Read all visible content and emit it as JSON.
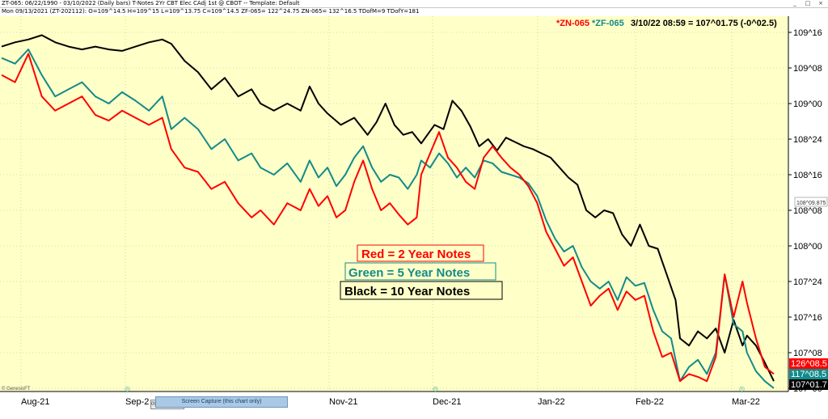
{
  "window": {
    "title": "ZT-065:  06/22/1990 - 03/10/2022  (Daily bars)   T-Notes 2Yr CBT Elec CAdj 1st @ CBOT   --  Template: Default",
    "buttons": [
      "_",
      "□",
      "×"
    ]
  },
  "infobar": {
    "text": "Mon  09/13/2021 (ZT-202112):  O=109^14.5   H=109^15   L=109^13.75   C=109^14.5   ZF-065= 122^24.75   ZN-065= 132^16.5   TDofM=9   TDofY=181"
  },
  "header": {
    "zn_label": "*ZN-065",
    "zf_label": "*ZF-065",
    "quote": "3/10/22 08:59 = 107^01.75 (-0^02.5)"
  },
  "watermark": "© GenesisFT",
  "cursor_price": "108^09.875",
  "last_prices": {
    "red": "126^08.5",
    "green": "117^08.5",
    "black": "107^01.7"
  },
  "taskbar": {
    "thumb_small": "09/13/2021",
    "capture_label": "Screen Capture (this chart only)"
  },
  "legend": {
    "red": "Red =  2 Year Notes",
    "green": "Green = 5 Year Notes",
    "black": "Black = 10 Year Notes"
  },
  "colors": {
    "background": "#ffffc8",
    "red": "#ff0000",
    "green": "#138a8a",
    "black": "#000000",
    "axis": "#000000",
    "grid": "#b4b4b4"
  },
  "chart_data": {
    "type": "line",
    "title": "",
    "xlabel": "",
    "ylabel": "",
    "x_tick_labels": [
      "Aug-21",
      "Sep-2",
      "Nov-21",
      "Dec-21",
      "Jan-22",
      "Feb-22",
      "Mar-22"
    ],
    "y_tick_labels": [
      "109^16",
      "109^08",
      "109^00",
      "108^24",
      "108^16",
      "108^08",
      "108^00",
      "107^24",
      "107^16",
      "107^08",
      "107^00"
    ],
    "y_tick_values": [
      109.5,
      109.25,
      109.0,
      108.75,
      108.5,
      108.25,
      108.0,
      107.75,
      107.5,
      107.25,
      107.0
    ],
    "ylim": [
      106.97,
      109.56
    ],
    "n_bars": 154,
    "grid": true,
    "series": [
      {
        "name": "Black = 10 Year Notes",
        "color": "#000000",
        "points": [
          [
            0,
            109.4
          ],
          [
            3,
            109.43
          ],
          [
            6,
            109.45
          ],
          [
            9,
            109.48
          ],
          [
            12,
            109.43
          ],
          [
            15,
            109.4
          ],
          [
            18,
            109.38
          ],
          [
            21,
            109.4
          ],
          [
            24,
            109.38
          ],
          [
            27,
            109.37
          ],
          [
            30,
            109.4
          ],
          [
            33,
            109.43
          ],
          [
            36,
            109.45
          ],
          [
            38,
            109.42
          ],
          [
            41,
            109.3
          ],
          [
            44,
            109.22
          ],
          [
            47,
            109.1
          ],
          [
            50,
            109.18
          ],
          [
            53,
            109.05
          ],
          [
            56,
            109.1
          ],
          [
            58,
            109.0
          ],
          [
            61,
            108.95
          ],
          [
            64,
            109.0
          ],
          [
            67,
            108.95
          ],
          [
            69,
            109.12
          ],
          [
            71,
            109.0
          ],
          [
            73,
            108.93
          ],
          [
            76,
            108.85
          ],
          [
            79,
            108.9
          ],
          [
            82,
            108.78
          ],
          [
            84,
            108.87
          ],
          [
            86,
            109.0
          ],
          [
            88,
            108.85
          ],
          [
            90,
            108.78
          ],
          [
            92,
            108.8
          ],
          [
            94,
            108.72
          ],
          [
            97,
            108.85
          ],
          [
            99,
            108.82
          ],
          [
            101,
            109.02
          ],
          [
            103,
            108.95
          ],
          [
            105,
            108.84
          ],
          [
            107,
            108.7
          ],
          [
            109,
            108.75
          ],
          [
            111,
            108.67
          ],
          [
            113,
            108.76
          ],
          [
            115,
            108.73
          ],
          [
            117,
            108.7
          ],
          [
            119,
            108.68
          ],
          [
            121,
            108.65
          ],
          [
            123,
            108.62
          ],
          [
            125,
            108.55
          ],
          [
            127,
            108.48
          ],
          [
            129,
            108.43
          ],
          [
            131,
            108.25
          ],
          [
            133,
            108.2
          ],
          [
            135,
            108.25
          ],
          [
            137,
            108.23
          ],
          [
            139,
            108.08
          ],
          [
            141,
            108.0
          ],
          [
            143,
            108.15
          ],
          [
            145,
            108.0
          ],
          [
            147,
            107.98
          ],
          [
            149,
            107.8
          ],
          [
            151,
            107.62
          ],
          [
            152,
            107.35
          ],
          [
            154,
            107.3
          ],
          [
            156,
            107.4
          ],
          [
            158,
            107.35
          ],
          [
            160,
            107.42
          ],
          [
            162,
            107.25
          ],
          [
            164,
            107.48
          ],
          [
            166,
            107.3
          ],
          [
            167,
            107.37
          ],
          [
            169,
            107.3
          ],
          [
            171,
            107.18
          ],
          [
            173,
            107.05
          ]
        ]
      },
      {
        "name": "Green = 5 Year Notes",
        "color": "#138a8a",
        "points": [
          [
            0,
            109.32
          ],
          [
            3,
            109.28
          ],
          [
            6,
            109.38
          ],
          [
            9,
            109.2
          ],
          [
            12,
            109.05
          ],
          [
            15,
            109.1
          ],
          [
            18,
            109.15
          ],
          [
            21,
            109.05
          ],
          [
            24,
            109.0
          ],
          [
            27,
            109.08
          ],
          [
            30,
            109.02
          ],
          [
            33,
            108.95
          ],
          [
            36,
            109.05
          ],
          [
            38,
            108.82
          ],
          [
            41,
            108.9
          ],
          [
            44,
            108.82
          ],
          [
            47,
            108.68
          ],
          [
            50,
            108.75
          ],
          [
            53,
            108.6
          ],
          [
            56,
            108.65
          ],
          [
            58,
            108.55
          ],
          [
            61,
            108.5
          ],
          [
            64,
            108.58
          ],
          [
            67,
            108.45
          ],
          [
            69,
            108.6
          ],
          [
            71,
            108.48
          ],
          [
            73,
            108.55
          ],
          [
            75,
            108.42
          ],
          [
            77,
            108.5
          ],
          [
            79,
            108.62
          ],
          [
            81,
            108.7
          ],
          [
            83,
            108.55
          ],
          [
            85,
            108.45
          ],
          [
            87,
            108.5
          ],
          [
            89,
            108.48
          ],
          [
            91,
            108.4
          ],
          [
            93,
            108.5
          ],
          [
            94,
            108.6
          ],
          [
            96,
            108.55
          ],
          [
            98,
            108.65
          ],
          [
            100,
            108.58
          ],
          [
            102,
            108.48
          ],
          [
            104,
            108.55
          ],
          [
            106,
            108.48
          ],
          [
            108,
            108.6
          ],
          [
            110,
            108.58
          ],
          [
            112,
            108.52
          ],
          [
            114,
            108.5
          ],
          [
            116,
            108.48
          ],
          [
            118,
            108.44
          ],
          [
            120,
            108.35
          ],
          [
            122,
            108.18
          ],
          [
            124,
            108.05
          ],
          [
            126,
            107.96
          ],
          [
            128,
            108.0
          ],
          [
            130,
            107.85
          ],
          [
            132,
            107.75
          ],
          [
            134,
            107.7
          ],
          [
            136,
            107.75
          ],
          [
            138,
            107.62
          ],
          [
            140,
            107.78
          ],
          [
            142,
            107.72
          ],
          [
            144,
            107.74
          ],
          [
            146,
            107.55
          ],
          [
            148,
            107.4
          ],
          [
            150,
            107.35
          ],
          [
            152,
            107.05
          ],
          [
            154,
            107.15
          ],
          [
            156,
            107.2
          ],
          [
            158,
            107.1
          ],
          [
            160,
            107.25
          ],
          [
            162,
            107.8
          ],
          [
            164,
            107.45
          ],
          [
            166,
            107.4
          ],
          [
            167,
            107.25
          ],
          [
            169,
            107.12
          ],
          [
            171,
            107.05
          ],
          [
            173,
            107.0
          ]
        ]
      },
      {
        "name": "Red =  2 Year Notes",
        "color": "#ff0000",
        "points": [
          [
            0,
            109.2
          ],
          [
            3,
            109.15
          ],
          [
            6,
            109.35
          ],
          [
            9,
            109.05
          ],
          [
            12,
            108.95
          ],
          [
            15,
            109.0
          ],
          [
            18,
            109.05
          ],
          [
            21,
            108.92
          ],
          [
            24,
            108.88
          ],
          [
            27,
            108.95
          ],
          [
            30,
            108.9
          ],
          [
            33,
            108.85
          ],
          [
            36,
            108.9
          ],
          [
            38,
            108.68
          ],
          [
            41,
            108.55
          ],
          [
            44,
            108.52
          ],
          [
            47,
            108.4
          ],
          [
            50,
            108.45
          ],
          [
            53,
            108.3
          ],
          [
            56,
            108.2
          ],
          [
            58,
            108.25
          ],
          [
            61,
            108.15
          ],
          [
            64,
            108.3
          ],
          [
            67,
            108.25
          ],
          [
            69,
            108.4
          ],
          [
            71,
            108.28
          ],
          [
            73,
            108.35
          ],
          [
            75,
            108.2
          ],
          [
            77,
            108.25
          ],
          [
            79,
            108.45
          ],
          [
            81,
            108.6
          ],
          [
            83,
            108.4
          ],
          [
            85,
            108.25
          ],
          [
            87,
            108.3
          ],
          [
            89,
            108.22
          ],
          [
            91,
            108.15
          ],
          [
            93,
            108.2
          ],
          [
            94,
            108.5
          ],
          [
            96,
            108.65
          ],
          [
            98,
            108.8
          ],
          [
            100,
            108.62
          ],
          [
            102,
            108.55
          ],
          [
            104,
            108.45
          ],
          [
            106,
            108.4
          ],
          [
            108,
            108.62
          ],
          [
            110,
            108.7
          ],
          [
            112,
            108.62
          ],
          [
            114,
            108.55
          ],
          [
            116,
            108.5
          ],
          [
            118,
            108.42
          ],
          [
            120,
            108.3
          ],
          [
            122,
            108.1
          ],
          [
            124,
            107.98
          ],
          [
            126,
            107.86
          ],
          [
            128,
            107.92
          ],
          [
            130,
            107.75
          ],
          [
            132,
            107.58
          ],
          [
            134,
            107.65
          ],
          [
            136,
            107.7
          ],
          [
            138,
            107.55
          ],
          [
            140,
            107.68
          ],
          [
            142,
            107.62
          ],
          [
            144,
            107.65
          ],
          [
            146,
            107.4
          ],
          [
            148,
            107.22
          ],
          [
            150,
            107.25
          ],
          [
            152,
            107.05
          ],
          [
            154,
            107.1
          ],
          [
            156,
            107.08
          ],
          [
            158,
            107.05
          ],
          [
            160,
            107.22
          ],
          [
            162,
            107.8
          ],
          [
            164,
            107.5
          ],
          [
            166,
            107.75
          ],
          [
            167,
            107.6
          ],
          [
            169,
            107.35
          ],
          [
            171,
            107.15
          ],
          [
            173,
            107.1
          ]
        ]
      }
    ]
  }
}
